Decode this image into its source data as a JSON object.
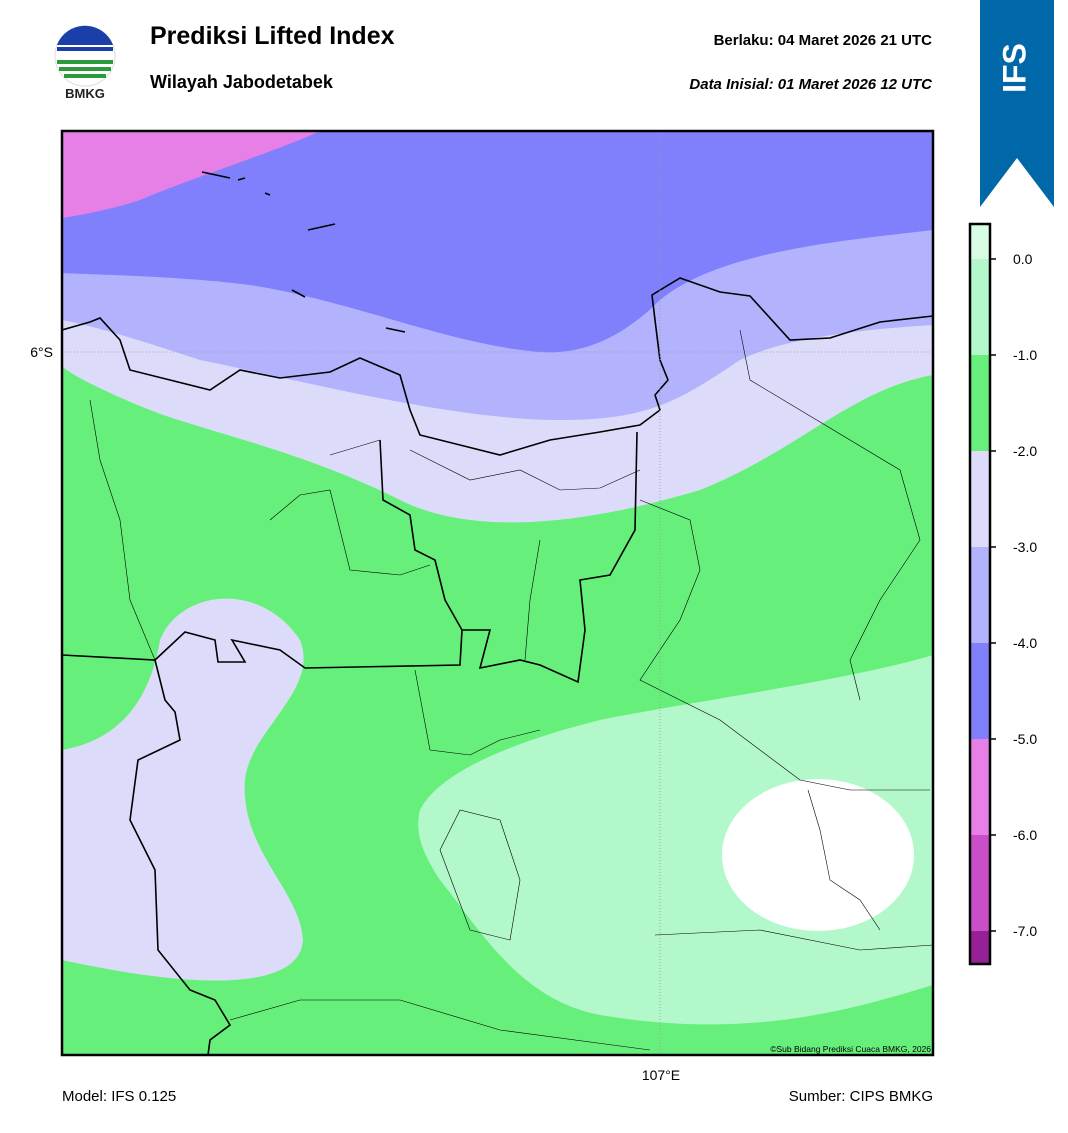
{
  "header": {
    "logo_text": "BMKG",
    "title": "Prediksi Lifted Index",
    "subtitle": "Wilayah Jabodetabek",
    "valid": "Berlaku:  04 Maret 2026 21 UTC",
    "init": "Data Inisial:  01 Maret 2026 12 UTC"
  },
  "banner": "IFS",
  "map": {
    "lat_label": "6°S",
    "lon_label": "107°E",
    "credit": "©Sub Bidang Prediksi Cuaca BMKG, 2026"
  },
  "colorbar": {
    "ticks": [
      "0.0",
      "-1.0",
      "-2.0",
      "-3.0",
      "-4.0",
      "-5.0",
      "-6.0",
      "-7.0"
    ],
    "colors": [
      "#d9fde4",
      "#b3f8ca",
      "#66ef7a",
      "#dcdcfa",
      "#b2b2fd",
      "#8080fc",
      "#e680e6",
      "#c84fc8",
      "#962096"
    ]
  },
  "footer": {
    "model": "Model: IFS 0.125",
    "source": "Sumber: CIPS BMKG"
  }
}
